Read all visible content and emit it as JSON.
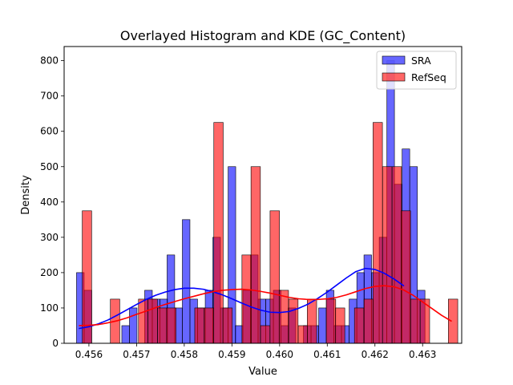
{
  "chart_data": {
    "type": "histogram",
    "title": "Overlayed Histogram and KDE (GC_Content)",
    "xlabel": "Value",
    "ylabel": "Density",
    "xlim": [
      0.45548,
      0.46382
    ],
    "ylim": [
      0,
      840
    ],
    "grid": false,
    "legend_position": "top-right",
    "x_ticks": [
      "0.456",
      "0.457",
      "0.458",
      "0.459",
      "0.460",
      "0.461",
      "0.462",
      "0.463"
    ],
    "y_ticks": [
      "0",
      "100",
      "200",
      "300",
      "400",
      "500",
      "600",
      "700",
      "800"
    ],
    "series": [
      {
        "name": "SRA",
        "color": "#0000ff",
        "bin_width": 0.000159,
        "bins": [
          [
            0.45574,
            200
          ],
          [
            0.4559,
            150
          ],
          [
            0.45669,
            50
          ],
          [
            0.45685,
            100
          ],
          [
            0.45717,
            150
          ],
          [
            0.45733,
            125
          ],
          [
            0.45749,
            125
          ],
          [
            0.45764,
            250
          ],
          [
            0.4578,
            100
          ],
          [
            0.45796,
            350
          ],
          [
            0.45812,
            125
          ],
          [
            0.45828,
            100
          ],
          [
            0.45844,
            150
          ],
          [
            0.4586,
            300
          ],
          [
            0.45876,
            100
          ],
          [
            0.45892,
            500
          ],
          [
            0.45907,
            50
          ],
          [
            0.45923,
            150
          ],
          [
            0.45939,
            250
          ],
          [
            0.45955,
            125
          ],
          [
            0.45971,
            125
          ],
          [
            0.45987,
            150
          ],
          [
            0.46003,
            50
          ],
          [
            0.46018,
            100
          ],
          [
            0.4605,
            50
          ],
          [
            0.46066,
            50
          ],
          [
            0.46082,
            100
          ],
          [
            0.46098,
            150
          ],
          [
            0.46114,
            50
          ],
          [
            0.4613,
            50
          ],
          [
            0.46146,
            125
          ],
          [
            0.46162,
            200
          ],
          [
            0.46177,
            250
          ],
          [
            0.46193,
            200
          ],
          [
            0.46209,
            300
          ],
          [
            0.46225,
            800
          ],
          [
            0.46241,
            450
          ],
          [
            0.46257,
            550
          ],
          [
            0.46273,
            500
          ],
          [
            0.46289,
            150
          ]
        ],
        "kde": {
          "x": [
            0.4558,
            0.456,
            0.4562,
            0.4564,
            0.4566,
            0.4568,
            0.457,
            0.4572,
            0.4574,
            0.4576,
            0.4578,
            0.458,
            0.4582,
            0.4584,
            0.4586,
            0.4588,
            0.459,
            0.4592,
            0.4594,
            0.4596,
            0.4598,
            0.46,
            0.4602,
            0.4604,
            0.4606,
            0.4608,
            0.461,
            0.4612,
            0.4614,
            0.4616,
            0.4618,
            0.462,
            0.4622,
            0.4624,
            0.4626
          ],
          "y": [
            42,
            47,
            55,
            66,
            80,
            95,
            110,
            124,
            136,
            145,
            152,
            156,
            156,
            153,
            146,
            137,
            126,
            114,
            103,
            94,
            88,
            87,
            90,
            99,
            111,
            127,
            145,
            165,
            185,
            203,
            212,
            209,
            198,
            182,
            163
          ]
        }
      },
      {
        "name": "RefSeq",
        "color": "#ff0000",
        "bin_width": 0.000197,
        "bins": [
          [
            0.45586,
            375
          ],
          [
            0.45645,
            125
          ],
          [
            0.45704,
            125
          ],
          [
            0.45724,
            125
          ],
          [
            0.45744,
            100
          ],
          [
            0.45763,
            100
          ],
          [
            0.45822,
            100
          ],
          [
            0.45842,
            100
          ],
          [
            0.45862,
            625
          ],
          [
            0.45881,
            100
          ],
          [
            0.45921,
            250
          ],
          [
            0.4594,
            500
          ],
          [
            0.4596,
            50
          ],
          [
            0.4598,
            375
          ],
          [
            0.45999,
            150
          ],
          [
            0.46019,
            125
          ],
          [
            0.46039,
            50
          ],
          [
            0.46058,
            125
          ],
          [
            0.46098,
            125
          ],
          [
            0.46117,
            100
          ],
          [
            0.46157,
            100
          ],
          [
            0.46177,
            125
          ],
          [
            0.46196,
            625
          ],
          [
            0.46216,
            500
          ],
          [
            0.46236,
            500
          ],
          [
            0.46255,
            375
          ],
          [
            0.46275,
            125
          ],
          [
            0.46295,
            125
          ],
          [
            0.46354,
            125
          ]
        ],
        "kde": {
          "x": [
            0.4558,
            0.456,
            0.4562,
            0.4564,
            0.4566,
            0.4568,
            0.457,
            0.4572,
            0.4574,
            0.4576,
            0.4578,
            0.458,
            0.4582,
            0.4584,
            0.4586,
            0.4588,
            0.459,
            0.4592,
            0.4594,
            0.4596,
            0.4598,
            0.46,
            0.4602,
            0.4604,
            0.4606,
            0.4608,
            0.461,
            0.4612,
            0.4614,
            0.4616,
            0.4618,
            0.462,
            0.4622,
            0.4624,
            0.4626,
            0.4628,
            0.463,
            0.4632,
            0.4634,
            0.4636
          ],
          "y": [
            50,
            51,
            53,
            58,
            64,
            72,
            82,
            91,
            101,
            110,
            118,
            126,
            133,
            140,
            146,
            150,
            152,
            153,
            151,
            147,
            142,
            136,
            130,
            126,
            124,
            124,
            126,
            130,
            137,
            146,
            155,
            161,
            163,
            160,
            151,
            136,
            117,
            98,
            79,
            63
          ]
        }
      }
    ]
  }
}
